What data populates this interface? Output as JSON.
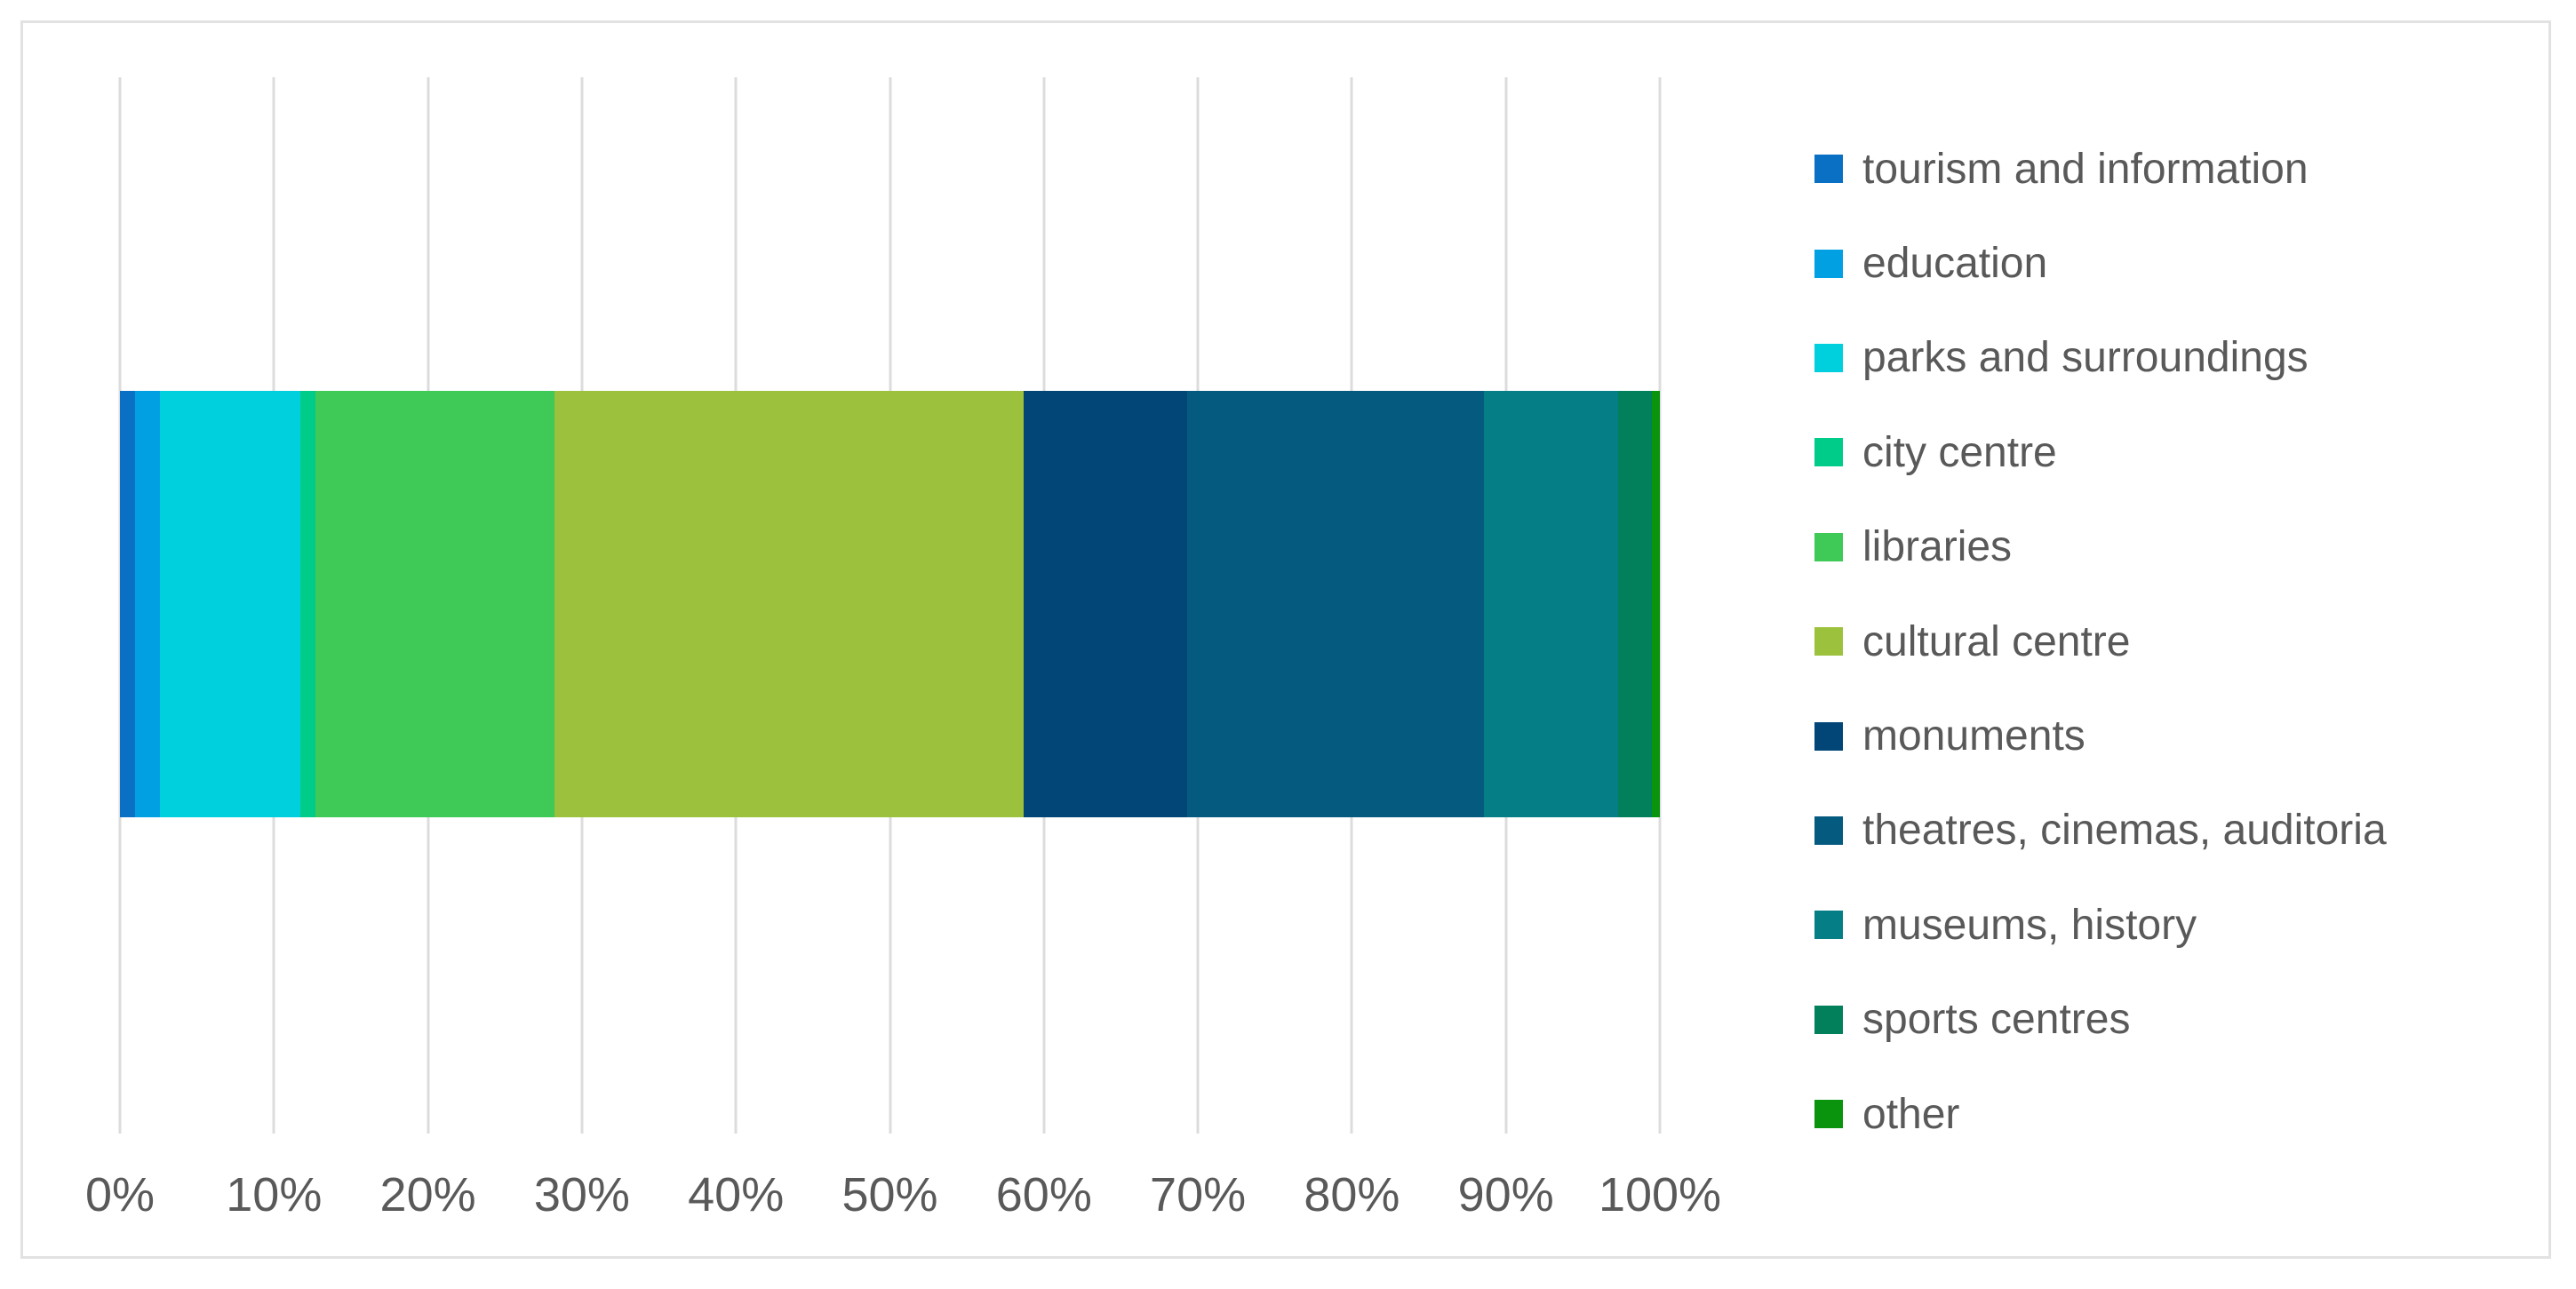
{
  "chart_data": {
    "type": "bar",
    "orientation": "horizontal",
    "stacked": true,
    "percent_stacked": true,
    "title": "",
    "xlabel": "",
    "ylabel": "",
    "xlim": [
      0,
      100
    ],
    "grid": true,
    "legend_position": "right",
    "x_ticks": [
      "0%",
      "10%",
      "20%",
      "30%",
      "40%",
      "50%",
      "60%",
      "70%",
      "80%",
      "90%",
      "100%"
    ],
    "series": [
      {
        "name": "tourism and information",
        "value": 1.0,
        "color": "#0a70c4"
      },
      {
        "name": "education",
        "value": 1.6,
        "color": "#00a0e3"
      },
      {
        "name": "parks and surroundings",
        "value": 9.1,
        "color": "#00d0de"
      },
      {
        "name": "city centre",
        "value": 1.0,
        "color": "#00cc8a"
      },
      {
        "name": "libraries",
        "value": 15.5,
        "color": "#3fc957"
      },
      {
        "name": "cultural centre",
        "value": 30.5,
        "color": "#9cc23d"
      },
      {
        "name": "monuments",
        "value": 10.6,
        "color": "#024677"
      },
      {
        "name": "theatres, cinemas, auditoria",
        "value": 19.3,
        "color": "#055a80"
      },
      {
        "name": "museums, history",
        "value": 8.7,
        "color": "#067e86"
      },
      {
        "name": "sports centres",
        "value": 2.2,
        "color": "#01805b"
      },
      {
        "name": "other",
        "value": 0.5,
        "color": "#0a930d"
      }
    ],
    "colors": {
      "grid": "#dcdcdc",
      "frame_border": "#e2e2e2",
      "text": "#595959",
      "background": "#ffffff"
    }
  }
}
